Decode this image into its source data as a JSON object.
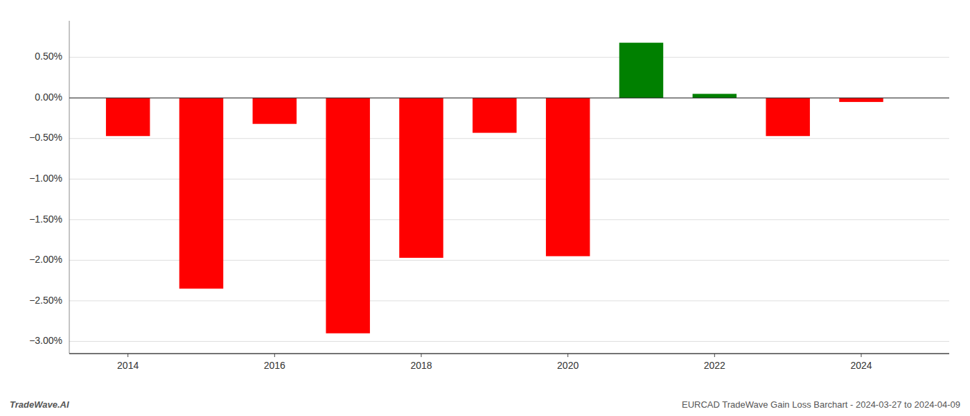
{
  "chart_data": {
    "type": "bar",
    "title": "EURCAD TradeWave Gain Loss Barchart - 2024-03-27 to 2024-04-09",
    "annotations": [
      "TradeWave.AI"
    ],
    "x": [
      2014,
      2015,
      2016,
      2017,
      2018,
      2019,
      2020,
      2021,
      2022,
      2023,
      2024
    ],
    "values": [
      -0.47,
      -2.35,
      -0.32,
      -2.9,
      -1.97,
      -0.43,
      -1.95,
      0.68,
      0.05,
      -0.47,
      -0.05
    ],
    "colors": [
      "#ff0000",
      "#ff0000",
      "#ff0000",
      "#ff0000",
      "#ff0000",
      "#ff0000",
      "#ff0000",
      "#008000",
      "#008000",
      "#ff0000",
      "#ff0000"
    ],
    "xlim": [
      2013.2,
      2025.2
    ],
    "xticks": [
      2014,
      2016,
      2018,
      2020,
      2022,
      2024
    ],
    "ylim": [
      -3.15,
      0.95
    ],
    "yticks": [
      {
        "value": 0.5,
        "label": "0.50%"
      },
      {
        "value": 0.0,
        "label": "0.00%"
      },
      {
        "value": -0.5,
        "label": "−0.50%"
      },
      {
        "value": -1.0,
        "label": "−1.00%"
      },
      {
        "value": -1.5,
        "label": "−1.50%"
      },
      {
        "value": -2.0,
        "label": "−2.00%"
      },
      {
        "value": -2.5,
        "label": "−2.50%"
      },
      {
        "value": -3.0,
        "label": "−3.00%"
      }
    ],
    "grid": true
  }
}
